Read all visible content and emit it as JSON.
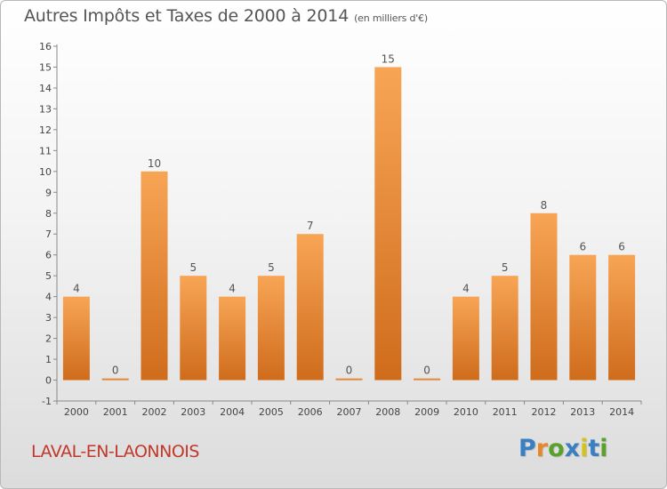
{
  "chart_data": {
    "type": "bar",
    "title": "Autres Impôts et Taxes de 2000 à 2014",
    "subtitle": "(en milliers d'€)",
    "categories": [
      "2000",
      "2001",
      "2002",
      "2003",
      "2004",
      "2005",
      "2006",
      "2007",
      "2008",
      "2009",
      "2010",
      "2011",
      "2012",
      "2013",
      "2014"
    ],
    "values": [
      4,
      0,
      10,
      5,
      4,
      5,
      7,
      0,
      15,
      0,
      4,
      5,
      8,
      6,
      6
    ],
    "ylim": [
      -1,
      16
    ],
    "yticks": [
      "-1",
      "0",
      "1",
      "2",
      "3",
      "4",
      "5",
      "6",
      "7",
      "8",
      "9",
      "10",
      "11",
      "12",
      "13",
      "14",
      "15",
      "16"
    ],
    "grid": false,
    "bar_color_top": "#f7a555",
    "bar_color_bottom": "#cf6c1c"
  },
  "commune": "LAVAL-EN-LAONNOIS",
  "logo": {
    "letters": [
      "P",
      "r",
      "o",
      "x",
      "i",
      "t",
      "i"
    ],
    "colors": [
      "#3a7fc1",
      "#e8862a",
      "#5aa02c",
      "#3a7fc1",
      "#d4c21f",
      "#3a7fc1",
      "#5aa02c"
    ]
  }
}
